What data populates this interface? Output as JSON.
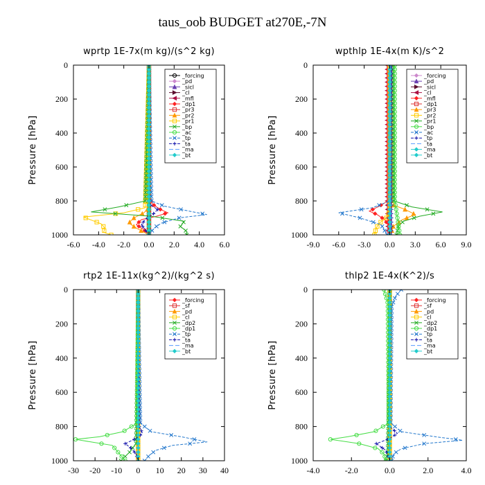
{
  "title": "taus_oob  BUDGET at270E,-7N",
  "chart_data": [
    {
      "type": "line",
      "title": "wprtp  1E-7x(m kg)/(s^2 kg)",
      "ylabel": "Pressure [hPa]",
      "xlim": [
        -6.0,
        6.0
      ],
      "ylim": [
        1000,
        0
      ],
      "x_ticks": [
        "-6.0",
        "-4.0",
        "-2.0",
        "0.0",
        "2.0",
        "4.0",
        "6.0"
      ],
      "y_ticks": [
        "0",
        "200",
        "400",
        "600",
        "800",
        "1000"
      ],
      "legend_position": "top-right",
      "grid": false,
      "series": [
        {
          "name": "_forcing",
          "color": "#000000",
          "marker": "circle",
          "dash": "",
          "y": [
            0,
            800,
            850,
            900,
            950,
            1000
          ],
          "x": [
            0,
            0,
            0,
            0,
            0,
            0
          ]
        },
        {
          "name": "_pd",
          "color": "#cc88cc",
          "marker": "diamond",
          "dash": "",
          "y": [
            0,
            1000
          ],
          "x": [
            0,
            0
          ]
        },
        {
          "name": "_sicl",
          "color": "#6a3fb0",
          "marker": "triangle",
          "dash": "",
          "y": [
            0,
            1000
          ],
          "x": [
            0,
            0
          ]
        },
        {
          "name": "_cl",
          "color": "#5c0f2e",
          "marker": "triangle-right",
          "dash": "",
          "y": [
            0,
            1000
          ],
          "x": [
            0,
            0
          ]
        },
        {
          "name": "_mfl",
          "color": "#aa1144",
          "marker": "triangle-left",
          "dash": "",
          "y": [
            0,
            1000
          ],
          "x": [
            0,
            0
          ]
        },
        {
          "name": "_dp1",
          "color": "#ff2222",
          "marker": "diamond",
          "dash": "",
          "y": [
            0,
            780,
            820,
            850,
            870,
            890,
            910,
            940,
            970,
            1000
          ],
          "x": [
            0,
            0,
            0.3,
            0.9,
            1.5,
            0.6,
            -0.6,
            -1.0,
            -0.4,
            0
          ]
        },
        {
          "name": "_pr3",
          "color": "#dd3333",
          "marker": "square",
          "dash": "",
          "y": [
            0,
            850,
            950,
            1000
          ],
          "x": [
            0,
            0,
            0,
            0
          ]
        },
        {
          "name": "_pr2",
          "color": "#ff9900",
          "marker": "triangle",
          "dash": "",
          "y": [
            0,
            840,
            870,
            900,
            930,
            960,
            1000
          ],
          "x": [
            0,
            0,
            -0.4,
            -1.2,
            -1.6,
            -1.0,
            0
          ]
        },
        {
          "name": "_pr1",
          "color": "#ffcc00",
          "marker": "square",
          "dash": "",
          "y": [
            0,
            840,
            870,
            895,
            915,
            935,
            960,
            985,
            1000
          ],
          "x": [
            0,
            -0.3,
            -2.0,
            -5.2,
            -4.5,
            -3.8,
            -3.5,
            -3.6,
            -3.0
          ]
        },
        {
          "name": "_bp",
          "color": "#22aa22",
          "marker": "cross",
          "dash": "",
          "y": [
            0,
            800,
            835,
            865,
            890,
            920,
            950,
            980,
            1000
          ],
          "x": [
            0,
            -0.3,
            -2.4,
            -4.6,
            0.2,
            2.8,
            2.5,
            3.0,
            3.0
          ]
        },
        {
          "name": "_ac",
          "color": "#44dd44",
          "marker": "circle",
          "dash": "",
          "y": [
            0,
            1000
          ],
          "x": [
            0,
            0
          ]
        },
        {
          "name": "_tp",
          "color": "#2277cc",
          "marker": "cross",
          "dash": "4,2",
          "y": [
            0,
            800,
            830,
            860,
            880,
            900,
            930,
            960,
            1000
          ],
          "x": [
            0,
            0.2,
            1.2,
            3.2,
            4.6,
            2.4,
            1.0,
            0.4,
            0
          ]
        },
        {
          "name": "_ta",
          "color": "#1111aa",
          "marker": "plus",
          "dash": "4,2",
          "y": [
            0,
            820,
            850,
            880,
            910,
            940,
            970,
            1000
          ],
          "x": [
            0,
            0,
            0.7,
            0.3,
            -0.3,
            -0.6,
            -0.3,
            0
          ]
        },
        {
          "name": "_ma",
          "color": "#5599ff",
          "marker": "none",
          "dash": "6,3",
          "y": [
            0,
            1000
          ],
          "x": [
            0,
            0
          ]
        },
        {
          "name": "_bt",
          "color": "#22cccc",
          "marker": "diamond",
          "dash": "",
          "y": [
            0,
            1000
          ],
          "x": [
            0,
            0
          ]
        }
      ]
    },
    {
      "type": "line",
      "title": "wpthlp  1E-4x(m K)/s^2",
      "ylabel": "Pressure [hPa]",
      "xlim": [
        -9.0,
        9.0
      ],
      "ylim": [
        1000,
        0
      ],
      "x_ticks": [
        "-9.0",
        "-6.0",
        "-3.0",
        "0.0",
        "3.0",
        "6.0",
        "9.0"
      ],
      "y_ticks": [
        "0",
        "200",
        "400",
        "600",
        "800",
        "1000"
      ],
      "legend_position": "top-right",
      "grid": false,
      "series": [
        {
          "name": "_forcing",
          "color": "#cc88cc",
          "marker": "diamond",
          "dash": "",
          "y": [
            0,
            1000
          ],
          "x": [
            0,
            0
          ]
        },
        {
          "name": "_pd",
          "color": "#6a3fb0",
          "marker": "triangle",
          "dash": "",
          "y": [
            0,
            1000
          ],
          "x": [
            0,
            0
          ]
        },
        {
          "name": "_sicl",
          "color": "#5c0f2e",
          "marker": "triangle-right",
          "dash": "",
          "y": [
            0,
            1000
          ],
          "x": [
            0,
            0
          ]
        },
        {
          "name": "_cl",
          "color": "#aa1144",
          "marker": "triangle-left",
          "dash": "",
          "y": [
            0,
            800,
            1000
          ],
          "x": [
            -0.3,
            -0.3,
            -0.2
          ]
        },
        {
          "name": "_mfl",
          "color": "#ff2222",
          "marker": "diamond",
          "dash": "",
          "y": [
            0,
            800,
            830,
            860,
            880,
            910,
            950,
            1000
          ],
          "x": [
            -0.2,
            -0.2,
            -1.2,
            -2.4,
            -1.5,
            -0.6,
            -0.1,
            0
          ]
        },
        {
          "name": "_dp1",
          "color": "#dd3333",
          "marker": "square",
          "dash": "",
          "y": [
            0,
            1000
          ],
          "x": [
            0,
            0
          ]
        },
        {
          "name": "_pr3",
          "color": "#ff9900",
          "marker": "triangle",
          "dash": "",
          "y": [
            0,
            820,
            850,
            880,
            910,
            950,
            1000
          ],
          "x": [
            0.2,
            0.2,
            1.8,
            3.0,
            1.5,
            0.4,
            0.1
          ]
        },
        {
          "name": "_pr2",
          "color": "#ffcc00",
          "marker": "square",
          "dash": "",
          "y": [
            0,
            860,
            900,
            930,
            960,
            1000
          ],
          "x": [
            0,
            0,
            -0.4,
            -1.2,
            -1.6,
            -1.8
          ]
        },
        {
          "name": "_pr1",
          "color": "#22aa22",
          "marker": "cross",
          "dash": "",
          "y": [
            0,
            800,
            835,
            865,
            890,
            920,
            950,
            1000
          ],
          "x": [
            0.4,
            0.5,
            2.6,
            6.2,
            3.5,
            1.6,
            1.0,
            0.8
          ]
        },
        {
          "name": "_bp",
          "color": "#44dd44",
          "marker": "circle",
          "dash": "",
          "y": [
            0,
            800,
            900,
            1000
          ],
          "x": [
            0.6,
            0.6,
            0.9,
            1.2
          ]
        },
        {
          "name": "_ac",
          "color": "#2277cc",
          "marker": "cross",
          "dash": "4,2",
          "y": [
            0,
            800,
            840,
            870,
            900,
            940,
            1000
          ],
          "x": [
            0.1,
            0,
            -2.0,
            -6.0,
            -3.5,
            -1.0,
            -0.3
          ]
        },
        {
          "name": "_tp",
          "color": "#1111aa",
          "marker": "plus",
          "dash": "4,2",
          "y": [
            0,
            1000
          ],
          "x": [
            0.2,
            0.2
          ]
        },
        {
          "name": "_ta",
          "color": "#5599ff",
          "marker": "none",
          "dash": "6,3",
          "y": [
            0,
            1000
          ],
          "x": [
            0.1,
            0.1
          ]
        },
        {
          "name": "_ma",
          "color": "#22cccc",
          "marker": "diamond",
          "dash": "",
          "y": [
            0,
            1000
          ],
          "x": [
            0,
            0
          ]
        },
        {
          "name": "_bt",
          "color": "#22cccc",
          "marker": "diamond",
          "dash": "",
          "y": [
            0,
            1000
          ],
          "x": [
            0,
            0
          ]
        }
      ]
    },
    {
      "type": "line",
      "title": "rtp2  1E-11x(kg^2)/(kg^2 s)",
      "ylabel": "Pressure [hPa]",
      "xlim": [
        -30,
        40
      ],
      "ylim": [
        1000,
        0
      ],
      "x_ticks": [
        "-30",
        "-20",
        "-10",
        "0",
        "10",
        "20",
        "30",
        "40"
      ],
      "y_ticks": [
        "0",
        "200",
        "400",
        "600",
        "800",
        "1000"
      ],
      "legend_position": "top-right",
      "grid": false,
      "series": [
        {
          "name": "_forcing",
          "color": "#ff2222",
          "marker": "diamond",
          "dash": "",
          "y": [
            0,
            800,
            900,
            1000
          ],
          "x": [
            0,
            0,
            0,
            0
          ]
        },
        {
          "name": "_sf",
          "color": "#dd3333",
          "marker": "square",
          "dash": "",
          "y": [
            0,
            1000
          ],
          "x": [
            0,
            0
          ]
        },
        {
          "name": "_pd",
          "color": "#ff9900",
          "marker": "triangle",
          "dash": "",
          "y": [
            0,
            1000
          ],
          "x": [
            0,
            0
          ]
        },
        {
          "name": "_cl",
          "color": "#ffcc00",
          "marker": "square",
          "dash": "",
          "y": [
            0,
            1000
          ],
          "x": [
            0,
            0
          ]
        },
        {
          "name": "_dp2",
          "color": "#22aa22",
          "marker": "cross",
          "dash": "",
          "y": [
            0,
            900,
            950,
            1000
          ],
          "x": [
            0,
            -1,
            -4,
            -8
          ]
        },
        {
          "name": "_dp1",
          "color": "#44dd44",
          "marker": "circle",
          "dash": "",
          "y": [
            0,
            780,
            830,
            860,
            875,
            890,
            910,
            940,
            970,
            1000
          ],
          "x": [
            0,
            -0.5,
            -7,
            -18,
            -29,
            -22,
            -12,
            -10,
            -8,
            -6
          ]
        },
        {
          "name": "_tp",
          "color": "#2277cc",
          "marker": "cross",
          "dash": "4,2",
          "y": [
            0,
            780,
            830,
            860,
            890,
            910,
            940,
            970,
            1000
          ],
          "x": [
            0,
            1,
            6,
            20,
            32,
            16,
            8,
            5,
            3
          ]
        },
        {
          "name": "_ta",
          "color": "#1111aa",
          "marker": "plus",
          "dash": "4,2",
          "y": [
            0,
            800,
            840,
            870,
            900,
            930,
            960,
            1000
          ],
          "x": [
            0,
            0.5,
            2,
            -1,
            -6,
            -3,
            -1,
            0
          ]
        },
        {
          "name": "_ma",
          "color": "#5599ff",
          "marker": "none",
          "dash": "6,3",
          "y": [
            0,
            1000
          ],
          "x": [
            0,
            0
          ]
        },
        {
          "name": "_bt",
          "color": "#22cccc",
          "marker": "diamond",
          "dash": "",
          "y": [
            0,
            1000
          ],
          "x": [
            0,
            0
          ]
        }
      ]
    },
    {
      "type": "line",
      "title": "thlp2  1E-4x(K^2)/s",
      "ylabel": "Pressure [hPa]",
      "xlim": [
        -4.0,
        4.0
      ],
      "ylim": [
        1000,
        0
      ],
      "x_ticks": [
        "-4.0",
        "-2.0",
        "0.0",
        "2.0",
        "4.0"
      ],
      "y_ticks": [
        "0",
        "200",
        "400",
        "600",
        "800",
        "1000"
      ],
      "legend_position": "top-right",
      "grid": false,
      "series": [
        {
          "name": "_forcing",
          "color": "#ff2222",
          "marker": "diamond",
          "dash": "",
          "y": [
            0,
            1000
          ],
          "x": [
            0,
            0
          ]
        },
        {
          "name": "_sf",
          "color": "#dd3333",
          "marker": "square",
          "dash": "",
          "y": [
            0,
            1000
          ],
          "x": [
            0,
            0
          ]
        },
        {
          "name": "_pd",
          "color": "#ff9900",
          "marker": "triangle",
          "dash": "",
          "y": [
            0,
            1000
          ],
          "x": [
            0,
            0
          ]
        },
        {
          "name": "_cl",
          "color": "#ffcc00",
          "marker": "square",
          "dash": "",
          "y": [
            0,
            1000
          ],
          "x": [
            0,
            0
          ]
        },
        {
          "name": "_dp2",
          "color": "#22aa22",
          "marker": "cross",
          "dash": "",
          "y": [
            0,
            950,
            1000
          ],
          "x": [
            0,
            -0.1,
            -0.2
          ]
        },
        {
          "name": "_dp1",
          "color": "#44dd44",
          "marker": "circle",
          "dash": "",
          "y": [
            0,
            20,
            80,
            780,
            830,
            860,
            875,
            900,
            930,
            960,
            1000
          ],
          "x": [
            -0.3,
            -0.25,
            -0.1,
            -0.05,
            -0.8,
            -2.2,
            -3.1,
            -1.6,
            -0.6,
            -0.3,
            -0.2
          ]
        },
        {
          "name": "_tp",
          "color": "#2277cc",
          "marker": "cross",
          "dash": "4,2",
          "y": [
            0,
            40,
            100,
            780,
            830,
            860,
            880,
            900,
            930,
            960,
            1000
          ],
          "x": [
            0.6,
            0.3,
            0.1,
            0.05,
            0.6,
            2.4,
            3.8,
            1.8,
            0.6,
            0.2,
            0.1
          ]
        },
        {
          "name": "_ta",
          "color": "#1111aa",
          "marker": "plus",
          "dash": "4,2",
          "y": [
            0,
            800,
            840,
            870,
            900,
            940,
            1000
          ],
          "x": [
            0,
            0,
            0.4,
            0,
            -0.7,
            -0.2,
            0
          ]
        },
        {
          "name": "_ma",
          "color": "#5599ff",
          "marker": "none",
          "dash": "6,3",
          "y": [
            0,
            1000
          ],
          "x": [
            0,
            0
          ]
        },
        {
          "name": "_bt",
          "color": "#22cccc",
          "marker": "diamond",
          "dash": "",
          "y": [
            0,
            1000
          ],
          "x": [
            0,
            0
          ]
        }
      ]
    }
  ]
}
